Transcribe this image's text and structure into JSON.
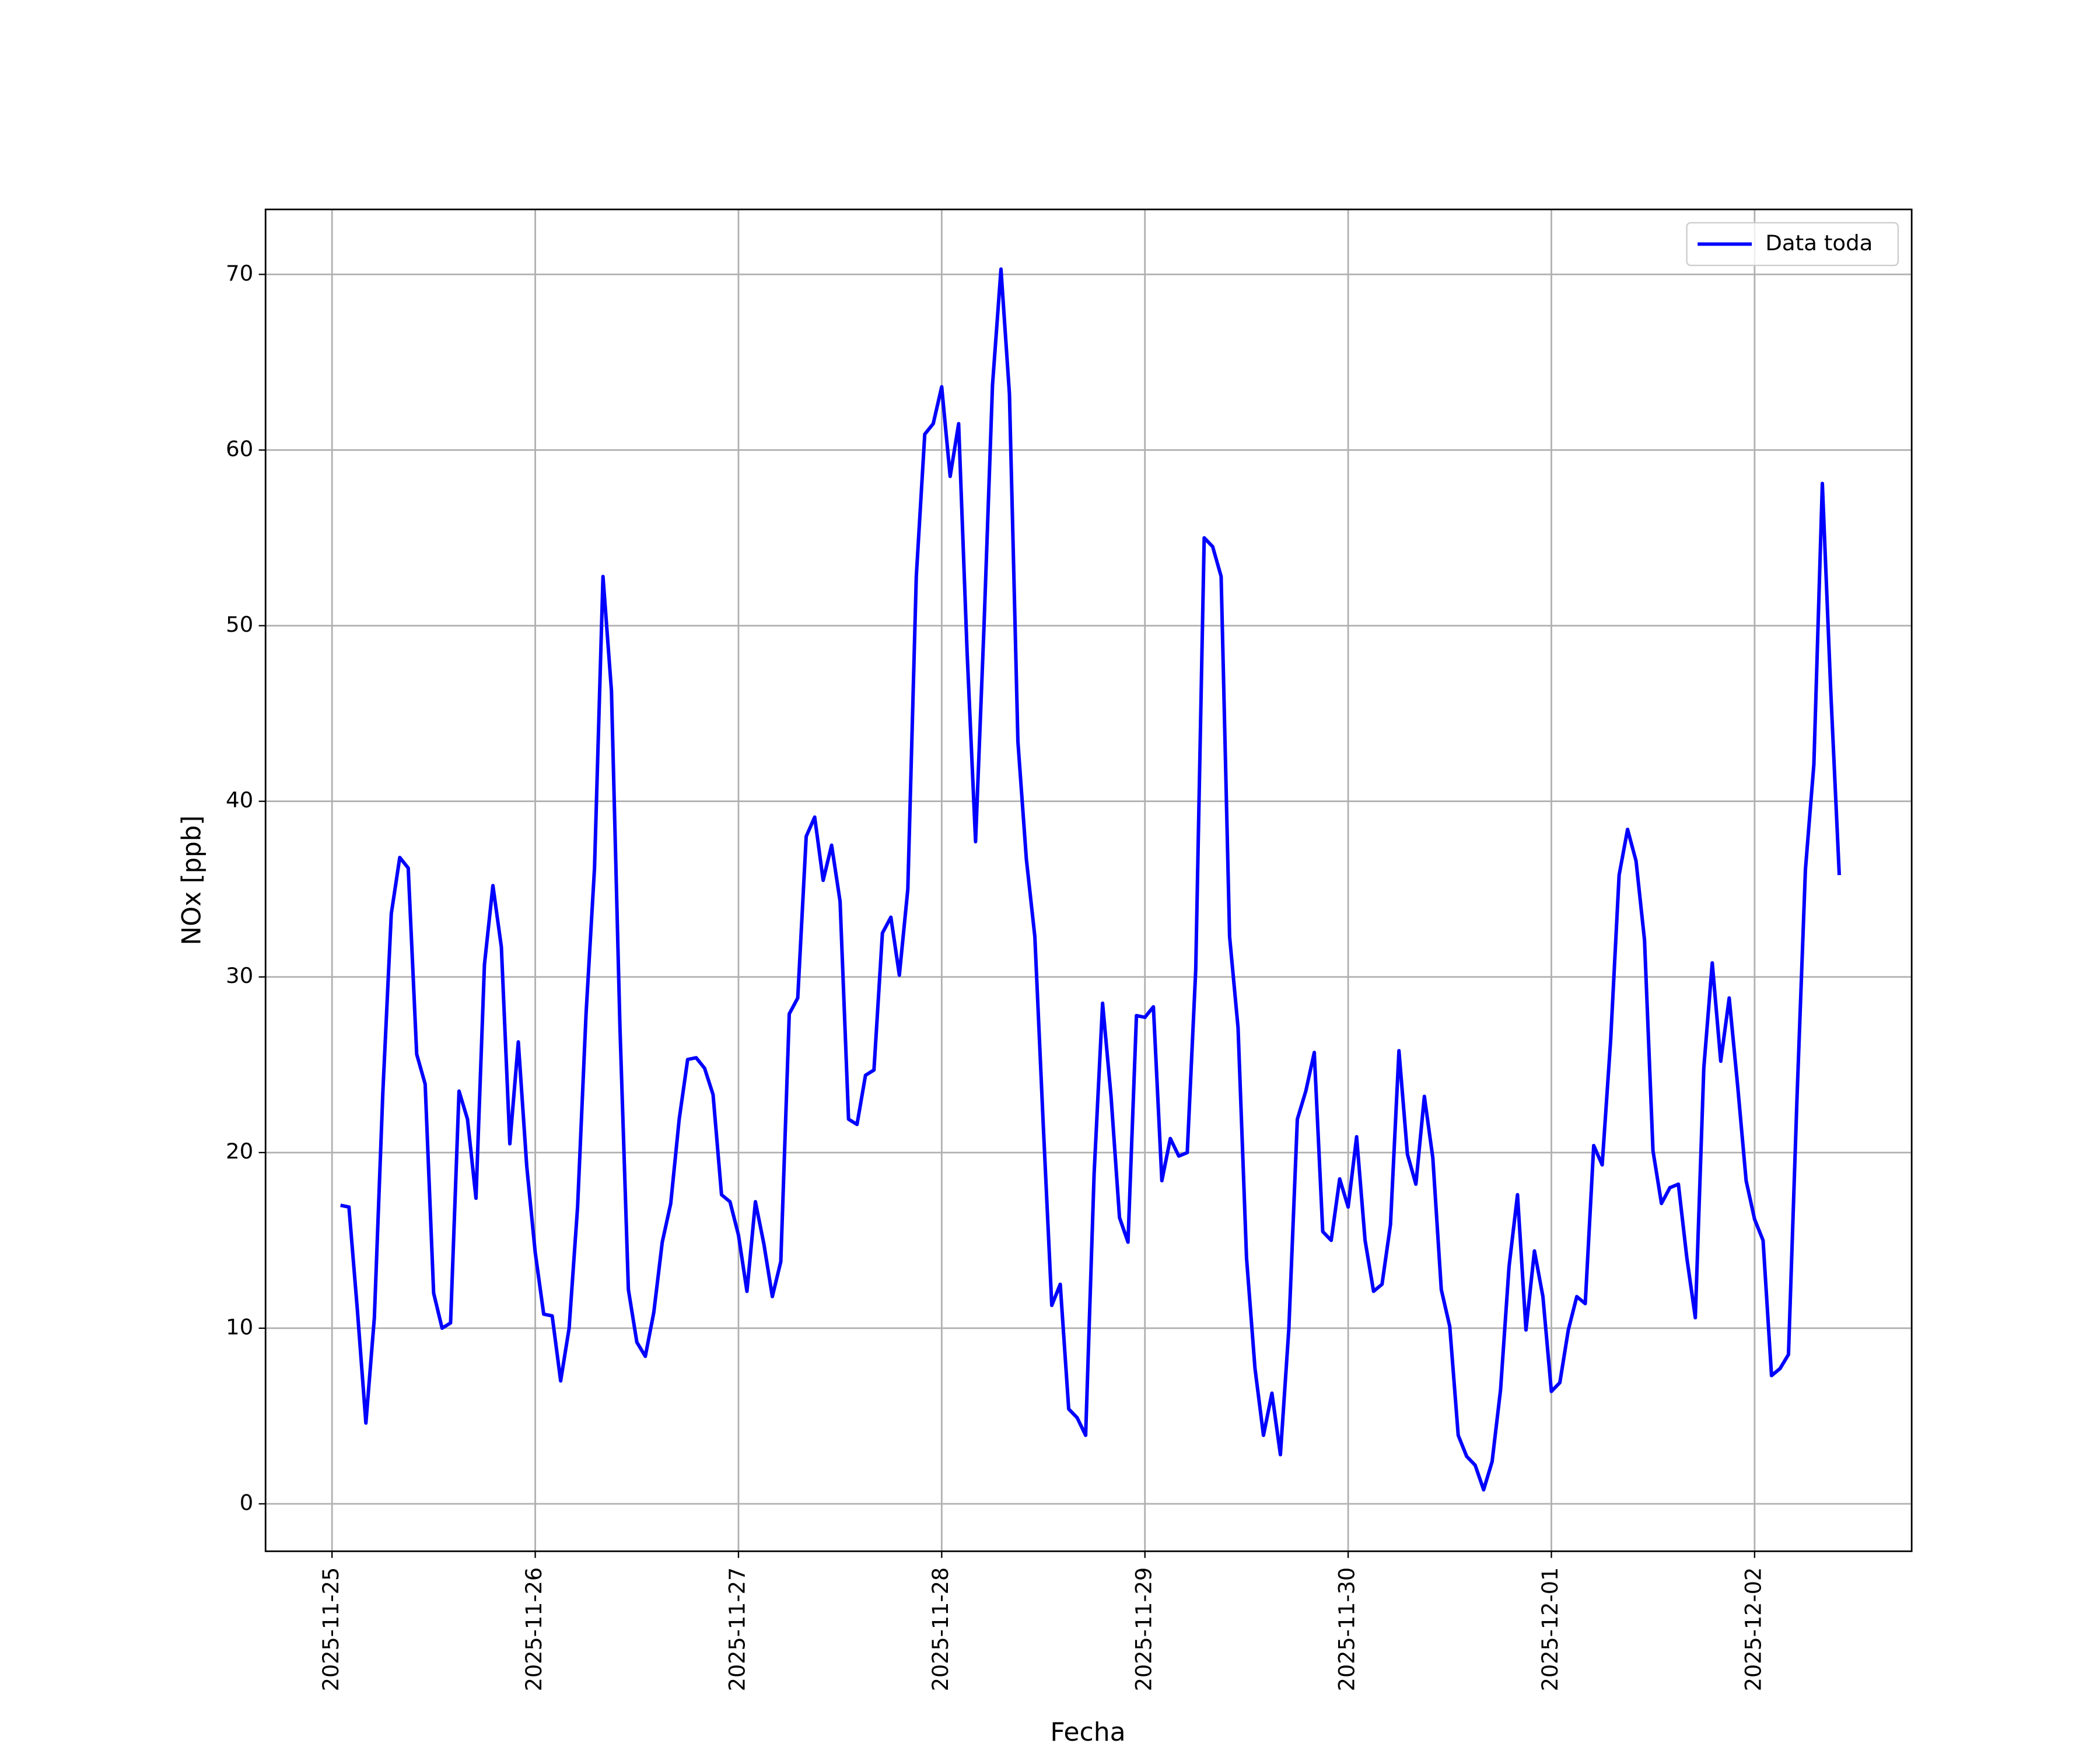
{
  "chart_data": {
    "type": "line",
    "xlabel": "Fecha",
    "ylabel": "NOx [ppb]",
    "x": [
      "2025-11-25T01:00",
      "2025-11-25T02:00",
      "2025-11-25T03:00",
      "2025-11-25T04:00",
      "2025-11-25T05:00",
      "2025-11-25T06:00",
      "2025-11-25T07:00",
      "2025-11-25T08:00",
      "2025-11-25T09:00",
      "2025-11-25T10:00",
      "2025-11-25T11:00",
      "2025-11-25T12:00",
      "2025-11-25T13:00",
      "2025-11-25T14:00",
      "2025-11-25T15:00",
      "2025-11-25T16:00",
      "2025-11-25T17:00",
      "2025-11-25T18:00",
      "2025-11-25T19:00",
      "2025-11-25T20:00",
      "2025-11-25T21:00",
      "2025-11-25T22:00",
      "2025-11-25T23:00",
      "2025-11-26T00:00",
      "2025-11-26T01:00",
      "2025-11-26T02:00",
      "2025-11-26T03:00",
      "2025-11-26T04:00",
      "2025-11-26T05:00",
      "2025-11-26T06:00",
      "2025-11-26T07:00",
      "2025-11-26T08:00",
      "2025-11-26T09:00",
      "2025-11-26T10:00",
      "2025-11-26T11:00",
      "2025-11-26T12:00",
      "2025-11-26T13:00",
      "2025-11-26T14:00",
      "2025-11-26T15:00",
      "2025-11-26T16:00",
      "2025-11-26T17:00",
      "2025-11-26T18:00",
      "2025-11-26T19:00",
      "2025-11-26T20:00",
      "2025-11-26T21:00",
      "2025-11-26T22:00",
      "2025-11-26T23:00",
      "2025-11-27T00:00",
      "2025-11-27T01:00",
      "2025-11-27T02:00",
      "2025-11-27T03:00",
      "2025-11-27T04:00",
      "2025-11-27T05:00",
      "2025-11-27T06:00",
      "2025-11-27T07:00",
      "2025-11-27T08:00",
      "2025-11-27T09:00",
      "2025-11-27T10:00",
      "2025-11-27T11:00",
      "2025-11-27T12:00",
      "2025-11-27T13:00",
      "2025-11-27T14:00",
      "2025-11-27T15:00",
      "2025-11-27T16:00",
      "2025-11-27T17:00",
      "2025-11-27T18:00",
      "2025-11-27T19:00",
      "2025-11-27T20:00",
      "2025-11-27T21:00",
      "2025-11-27T22:00",
      "2025-11-27T23:00",
      "2025-11-28T00:00",
      "2025-11-28T01:00",
      "2025-11-28T02:00",
      "2025-11-28T03:00",
      "2025-11-28T04:00",
      "2025-11-28T05:00",
      "2025-11-28T06:00",
      "2025-11-28T07:00",
      "2025-11-28T08:00",
      "2025-11-28T09:00",
      "2025-11-28T10:00",
      "2025-11-28T11:00",
      "2025-11-28T12:00",
      "2025-11-28T13:00",
      "2025-11-28T14:00",
      "2025-11-28T15:00",
      "2025-11-28T16:00",
      "2025-11-28T17:00",
      "2025-11-28T18:00",
      "2025-11-28T19:00",
      "2025-11-28T20:00",
      "2025-11-28T21:00",
      "2025-11-28T22:00",
      "2025-11-28T23:00",
      "2025-11-29T00:00",
      "2025-11-29T01:00",
      "2025-11-29T02:00",
      "2025-11-29T03:00",
      "2025-11-29T04:00",
      "2025-11-29T05:00",
      "2025-11-29T06:00",
      "2025-11-29T07:00",
      "2025-11-29T08:00",
      "2025-11-29T09:00",
      "2025-11-29T10:00",
      "2025-11-29T11:00",
      "2025-11-29T12:00",
      "2025-11-29T13:00",
      "2025-11-29T14:00",
      "2025-11-29T15:00",
      "2025-11-29T16:00",
      "2025-11-29T17:00",
      "2025-11-29T18:00",
      "2025-11-29T19:00",
      "2025-11-29T20:00",
      "2025-11-29T21:00",
      "2025-11-29T22:00",
      "2025-11-29T23:00",
      "2025-11-30T00:00",
      "2025-11-30T01:00",
      "2025-11-30T02:00",
      "2025-11-30T03:00",
      "2025-11-30T04:00",
      "2025-11-30T05:00",
      "2025-11-30T06:00",
      "2025-11-30T07:00",
      "2025-11-30T08:00",
      "2025-11-30T09:00",
      "2025-11-30T10:00",
      "2025-11-30T11:00",
      "2025-11-30T12:00",
      "2025-11-30T13:00",
      "2025-11-30T14:00",
      "2025-11-30T15:00",
      "2025-11-30T16:00",
      "2025-11-30T17:00",
      "2025-11-30T18:00",
      "2025-11-30T19:00",
      "2025-11-30T20:00",
      "2025-11-30T21:00",
      "2025-11-30T22:00",
      "2025-11-30T23:00",
      "2025-12-01T00:00",
      "2025-12-01T01:00",
      "2025-12-01T02:00",
      "2025-12-01T03:00",
      "2025-12-01T04:00",
      "2025-12-01T05:00",
      "2025-12-01T06:00",
      "2025-12-01T07:00",
      "2025-12-01T08:00",
      "2025-12-01T09:00",
      "2025-12-01T10:00",
      "2025-12-01T11:00",
      "2025-12-01T12:00",
      "2025-12-01T13:00",
      "2025-12-01T14:00",
      "2025-12-01T15:00",
      "2025-12-01T16:00",
      "2025-12-01T17:00",
      "2025-12-01T18:00",
      "2025-12-01T19:00",
      "2025-12-01T20:00",
      "2025-12-01T21:00",
      "2025-12-01T22:00",
      "2025-12-01T23:00",
      "2025-12-02T00:00",
      "2025-12-02T01:00",
      "2025-12-02T02:00",
      "2025-12-02T03:00",
      "2025-12-02T04:00",
      "2025-12-02T05:00",
      "2025-12-02T06:00",
      "2025-12-02T07:00",
      "2025-12-02T08:00",
      "2025-12-02T09:00",
      "2025-12-02T10:00"
    ],
    "series": [
      {
        "name": "Data toda",
        "color": "#0000ff",
        "values": [
          17.0,
          16.9,
          11.0,
          4.6,
          10.6,
          23.4,
          33.6,
          36.8,
          36.2,
          25.6,
          23.9,
          12.0,
          10.0,
          10.3,
          23.5,
          21.9,
          17.4,
          30.7,
          35.2,
          31.7,
          20.5,
          26.3,
          19.2,
          14.3,
          10.8,
          10.7,
          7.0,
          10.0,
          16.9,
          27.9,
          36.2,
          52.8,
          46.3,
          27.2,
          12.2,
          9.2,
          8.4,
          10.9,
          14.9,
          17.1,
          21.9,
          25.3,
          25.4,
          24.8,
          23.3,
          17.6,
          17.2,
          15.3,
          12.1,
          17.2,
          14.8,
          11.8,
          13.8,
          27.9,
          28.8,
          38.0,
          39.1,
          35.5,
          37.5,
          34.3,
          21.9,
          21.6,
          24.4,
          24.7,
          32.5,
          33.4,
          30.1,
          35.0,
          52.8,
          60.9,
          61.5,
          63.6,
          58.5,
          61.5,
          48.5,
          37.7,
          50.0,
          63.7,
          70.3,
          63.2,
          43.4,
          36.7,
          32.3,
          21.5,
          11.3,
          12.5,
          5.4,
          4.9,
          3.9,
          18.8,
          28.5,
          23.2,
          16.3,
          14.9,
          27.8,
          27.7,
          28.3,
          18.4,
          20.8,
          19.8,
          20.0,
          30.4,
          55.0,
          54.5,
          52.8,
          32.3,
          27.1,
          14.0,
          7.7,
          3.9,
          6.3,
          2.8,
          10.0,
          21.9,
          23.5,
          25.7,
          15.5,
          15.0,
          18.5,
          16.9,
          20.9,
          15.0,
          12.1,
          12.5,
          15.9,
          25.8,
          19.9,
          18.2,
          23.2,
          19.7,
          12.2,
          10.1,
          3.9,
          2.7,
          2.2,
          0.8,
          2.4,
          6.5,
          13.5,
          17.6,
          9.9,
          14.4,
          11.8,
          6.4,
          6.9,
          9.9,
          11.8,
          11.4,
          20.4,
          19.3,
          26.4,
          35.8,
          38.4,
          36.6,
          32.1,
          20.1,
          17.1,
          18.0,
          18.2,
          14.0,
          10.6,
          24.8,
          30.8,
          25.2,
          28.8,
          23.8,
          18.4,
          16.2,
          15.0,
          7.3,
          7.7,
          8.5,
          23.0,
          36.1,
          42.1,
          58.1,
          46.2,
          35.8
        ]
      }
    ],
    "xlim": [
      "2025-11-24T16:09",
      "2025-12-02T18:33"
    ],
    "xticks": [
      "2025-11-25",
      "2025-11-26",
      "2025-11-27",
      "2025-11-28",
      "2025-11-29",
      "2025-11-30",
      "2025-12-01",
      "2025-12-02"
    ],
    "ylim": [
      -2.7,
      73.7
    ],
    "yticks": [
      0,
      10,
      20,
      30,
      40,
      50,
      60,
      70
    ],
    "grid": true,
    "legend": "upper right"
  }
}
